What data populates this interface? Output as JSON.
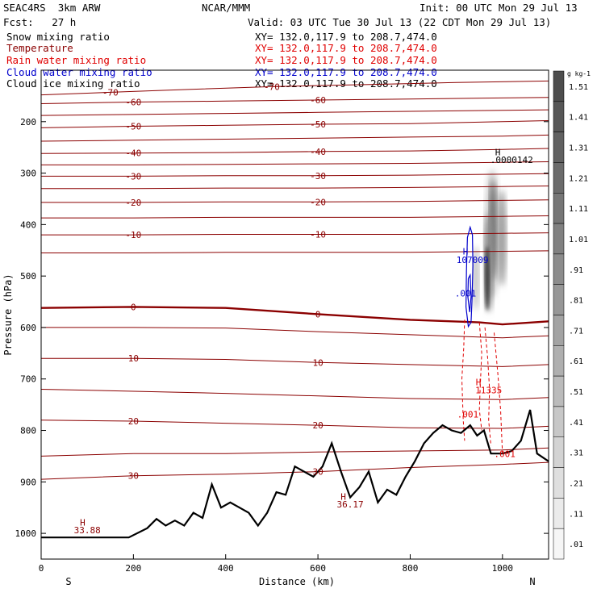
{
  "header": {
    "model": "SEAC4RS  3km ARW",
    "org": "NCAR/MMM",
    "init": "Init: 00 UTC Mon 29 Jul 13",
    "fcst": "Fcst:   27 h",
    "valid": "Valid: 03 UTC Tue 30 Jul 13 (22 CDT Mon 29 Jul 13)"
  },
  "fields": [
    {
      "name": "Snow mixing ratio",
      "range": "XY= 132.0,117.9 to 208.7,474.0",
      "color": "#000000",
      "range_color": "#000000"
    },
    {
      "name": "Temperature",
      "range": "XY= 132.0,117.9 to 208.7,474.0",
      "color": "#8b0000",
      "range_color": "#e00000"
    },
    {
      "name": "Rain water mixing ratio",
      "range": "XY= 132.0,117.9 to 208.7,474.0",
      "color": "#e00000",
      "range_color": "#e00000"
    },
    {
      "name": "Cloud water mixing ratio",
      "range": "XY= 132.0,117.9 to 208.7,474.0",
      "color": "#0000cc",
      "range_color": "#0000cc"
    },
    {
      "name": "Cloud ice mixing ratio",
      "range": "XY= 132.0,117.9 to 208.7,474.0",
      "color": "#000000",
      "range_color": "#000000"
    }
  ],
  "chart_data": {
    "type": "cross-section",
    "xlabel": "Distance (km)",
    "ylabel": "Pressure (hPa)",
    "xlim": [
      0,
      1100
    ],
    "ylim": [
      1050,
      100
    ],
    "x_ticks": [
      0,
      200,
      400,
      600,
      800,
      1000
    ],
    "y_ticks": [
      200,
      300,
      400,
      500,
      600,
      700,
      800,
      900,
      1000
    ],
    "x_end_labels": {
      "left": "S",
      "right": "N"
    },
    "colorbar": {
      "unit": "g kg-1",
      "levels": [
        "1.51",
        "1.41",
        "1.31",
        "1.21",
        "1.11",
        "1.01",
        ".91",
        ".81",
        ".71",
        ".61",
        ".51",
        ".41",
        ".31",
        ".21",
        ".11",
        ".01"
      ],
      "colors": [
        "#4d4d4d",
        "#575757",
        "#616161",
        "#6b6b6b",
        "#767676",
        "#818181",
        "#8c8c8c",
        "#979797",
        "#a3a3a3",
        "#afafaf",
        "#bbbbbb",
        "#c7c7c7",
        "#d3d3d3",
        "#dfdfdf",
        "#ebebeb",
        "#f6f6f6"
      ]
    },
    "temperature_contours": [
      {
        "level": -70,
        "label": "-70",
        "p": [
          [
            0,
            148
          ],
          [
            150,
            143
          ],
          [
            300,
            138
          ],
          [
            500,
            132
          ],
          [
            700,
            128
          ],
          [
            900,
            124
          ],
          [
            1100,
            121
          ]
        ]
      },
      {
        "level": -60,
        "label": "-60",
        "p": [
          [
            0,
            165
          ],
          [
            200,
            162
          ],
          [
            400,
            160
          ],
          [
            600,
            158
          ],
          [
            800,
            156
          ],
          [
            1000,
            154
          ],
          [
            1100,
            153
          ]
        ]
      },
      {
        "level": -55,
        "label": "",
        "p": [
          [
            0,
            188
          ],
          [
            200,
            186
          ],
          [
            400,
            184
          ],
          [
            600,
            182
          ],
          [
            800,
            180
          ],
          [
            1000,
            178
          ],
          [
            1100,
            177
          ]
        ]
      },
      {
        "level": -50,
        "label": "-50",
        "p": [
          [
            0,
            212
          ],
          [
            200,
            209
          ],
          [
            400,
            207
          ],
          [
            600,
            205
          ],
          [
            800,
            204
          ],
          [
            1000,
            200
          ],
          [
            1100,
            198
          ]
        ]
      },
      {
        "level": -45,
        "label": "",
        "p": [
          [
            0,
            238
          ],
          [
            200,
            236
          ],
          [
            400,
            234
          ],
          [
            600,
            232
          ],
          [
            800,
            230
          ],
          [
            1000,
            228
          ],
          [
            1100,
            226
          ]
        ]
      },
      {
        "level": -40,
        "label": "-40",
        "p": [
          [
            0,
            262
          ],
          [
            200,
            261
          ],
          [
            400,
            260
          ],
          [
            600,
            258
          ],
          [
            800,
            257
          ],
          [
            1000,
            254
          ],
          [
            1100,
            252
          ]
        ]
      },
      {
        "level": -35,
        "label": "",
        "p": [
          [
            0,
            284
          ],
          [
            200,
            284
          ],
          [
            400,
            283
          ],
          [
            600,
            282
          ],
          [
            800,
            281
          ],
          [
            1000,
            279
          ],
          [
            1100,
            278
          ]
        ]
      },
      {
        "level": -30,
        "label": "-30",
        "p": [
          [
            0,
            306
          ],
          [
            200,
            306
          ],
          [
            400,
            305
          ],
          [
            600,
            305
          ],
          [
            800,
            304
          ],
          [
            1000,
            302
          ],
          [
            1100,
            301
          ]
        ]
      },
      {
        "level": -25,
        "label": "",
        "p": [
          [
            0,
            330
          ],
          [
            200,
            330
          ],
          [
            400,
            329
          ],
          [
            600,
            329
          ],
          [
            800,
            328
          ],
          [
            1000,
            326
          ],
          [
            1100,
            325
          ]
        ]
      },
      {
        "level": -20,
        "label": "-20",
        "p": [
          [
            0,
            357
          ],
          [
            200,
            357
          ],
          [
            400,
            356
          ],
          [
            600,
            356
          ],
          [
            800,
            355
          ],
          [
            1000,
            353
          ],
          [
            1100,
            352
          ]
        ]
      },
      {
        "level": -15,
        "label": "",
        "p": [
          [
            0,
            387
          ],
          [
            200,
            387
          ],
          [
            400,
            386
          ],
          [
            600,
            386
          ],
          [
            800,
            386
          ],
          [
            1000,
            384
          ],
          [
            1100,
            383
          ]
        ]
      },
      {
        "level": -10,
        "label": "-10",
        "p": [
          [
            0,
            420
          ],
          [
            200,
            420
          ],
          [
            400,
            419
          ],
          [
            600,
            419
          ],
          [
            800,
            419
          ],
          [
            1000,
            417
          ],
          [
            1100,
            416
          ]
        ]
      },
      {
        "level": -5,
        "label": "",
        "p": [
          [
            0,
            455
          ],
          [
            200,
            455
          ],
          [
            400,
            454
          ],
          [
            600,
            454
          ],
          [
            800,
            454
          ],
          [
            1000,
            452
          ],
          [
            1100,
            451
          ]
        ]
      },
      {
        "level": 0,
        "label": "0",
        "p": [
          [
            0,
            562
          ],
          [
            200,
            560
          ],
          [
            400,
            562
          ],
          [
            600,
            574
          ],
          [
            800,
            585
          ],
          [
            950,
            590
          ],
          [
            1000,
            594
          ],
          [
            1100,
            588
          ]
        ]
      },
      {
        "level": 5,
        "label": "",
        "p": [
          [
            0,
            600
          ],
          [
            200,
            600
          ],
          [
            400,
            601
          ],
          [
            600,
            608
          ],
          [
            800,
            614
          ],
          [
            1000,
            620
          ],
          [
            1100,
            616
          ]
        ]
      },
      {
        "level": 10,
        "label": "10",
        "p": [
          [
            0,
            660
          ],
          [
            200,
            660
          ],
          [
            400,
            662
          ],
          [
            600,
            668
          ],
          [
            800,
            672
          ],
          [
            1000,
            676
          ],
          [
            1100,
            672
          ]
        ]
      },
      {
        "level": 15,
        "label": "",
        "p": [
          [
            0,
            720
          ],
          [
            200,
            724
          ],
          [
            400,
            728
          ],
          [
            600,
            733
          ],
          [
            800,
            738
          ],
          [
            1000,
            740
          ],
          [
            1100,
            736
          ]
        ]
      },
      {
        "level": 20,
        "label": "20",
        "p": [
          [
            0,
            780
          ],
          [
            200,
            782
          ],
          [
            400,
            786
          ],
          [
            600,
            790
          ],
          [
            800,
            795
          ],
          [
            1000,
            796
          ],
          [
            1100,
            792
          ]
        ]
      },
      {
        "level": 25,
        "label": "",
        "p": [
          [
            0,
            850
          ],
          [
            200,
            845
          ],
          [
            400,
            845
          ],
          [
            600,
            842
          ],
          [
            800,
            840
          ],
          [
            1000,
            838
          ],
          [
            1100,
            834
          ]
        ]
      },
      {
        "level": 30,
        "label": "30",
        "p": [
          [
            0,
            895
          ],
          [
            200,
            888
          ],
          [
            400,
            885
          ],
          [
            600,
            880
          ],
          [
            800,
            872
          ],
          [
            1000,
            866
          ],
          [
            1100,
            862
          ]
        ]
      }
    ],
    "terrain": [
      [
        0,
        1008
      ],
      [
        100,
        1008
      ],
      [
        190,
        1008
      ],
      [
        230,
        990
      ],
      [
        250,
        972
      ],
      [
        270,
        985
      ],
      [
        290,
        975
      ],
      [
        310,
        985
      ],
      [
        330,
        960
      ],
      [
        350,
        970
      ],
      [
        370,
        905
      ],
      [
        390,
        950
      ],
      [
        410,
        940
      ],
      [
        430,
        950
      ],
      [
        450,
        960
      ],
      [
        470,
        985
      ],
      [
        490,
        960
      ],
      [
        510,
        920
      ],
      [
        530,
        925
      ],
      [
        550,
        870
      ],
      [
        570,
        880
      ],
      [
        590,
        890
      ],
      [
        610,
        870
      ],
      [
        630,
        825
      ],
      [
        650,
        880
      ],
      [
        670,
        930
      ],
      [
        690,
        910
      ],
      [
        710,
        880
      ],
      [
        730,
        940
      ],
      [
        750,
        915
      ],
      [
        770,
        925
      ],
      [
        790,
        890
      ],
      [
        810,
        860
      ],
      [
        830,
        825
      ],
      [
        850,
        805
      ],
      [
        870,
        790
      ],
      [
        890,
        800
      ],
      [
        910,
        805
      ],
      [
        930,
        790
      ],
      [
        945,
        810
      ],
      [
        960,
        800
      ],
      [
        975,
        845
      ],
      [
        1000,
        845
      ],
      [
        1020,
        840
      ],
      [
        1040,
        820
      ],
      [
        1060,
        760
      ],
      [
        1075,
        845
      ],
      [
        1100,
        860
      ]
    ],
    "annotations": [
      {
        "text": "H",
        "x": 90,
        "p": 985,
        "color": "#8b0000"
      },
      {
        "text": "33.88",
        "x": 100,
        "p": 1000,
        "color": "#8b0000"
      },
      {
        "text": "H",
        "x": 655,
        "p": 935,
        "color": "#8b0000"
      },
      {
        "text": "36.17",
        "x": 670,
        "p": 950,
        "color": "#8b0000"
      },
      {
        "text": "H",
        "x": 920,
        "p": 458,
        "color": "#0000cc"
      },
      {
        "text": "107009",
        "x": 935,
        "p": 475,
        "color": "#0000cc"
      },
      {
        "text": ".001",
        "x": 920,
        "p": 540,
        "color": "#0000cc"
      },
      {
        "text": "H",
        "x": 990,
        "p": 265,
        "color": "#000000"
      },
      {
        "text": ".0000142",
        "x": 1020,
        "p": 280,
        "color": "#000000"
      },
      {
        "text": "H",
        "x": 948,
        "p": 712,
        "color": "#e00000"
      },
      {
        "text": "11335",
        "x": 970,
        "p": 728,
        "color": "#e00000"
      },
      {
        "text": ".001",
        "x": 925,
        "p": 775,
        "color": "#e00000"
      },
      {
        "text": ".001",
        "x": 1005,
        "p": 852,
        "color": "#e00000"
      }
    ]
  }
}
